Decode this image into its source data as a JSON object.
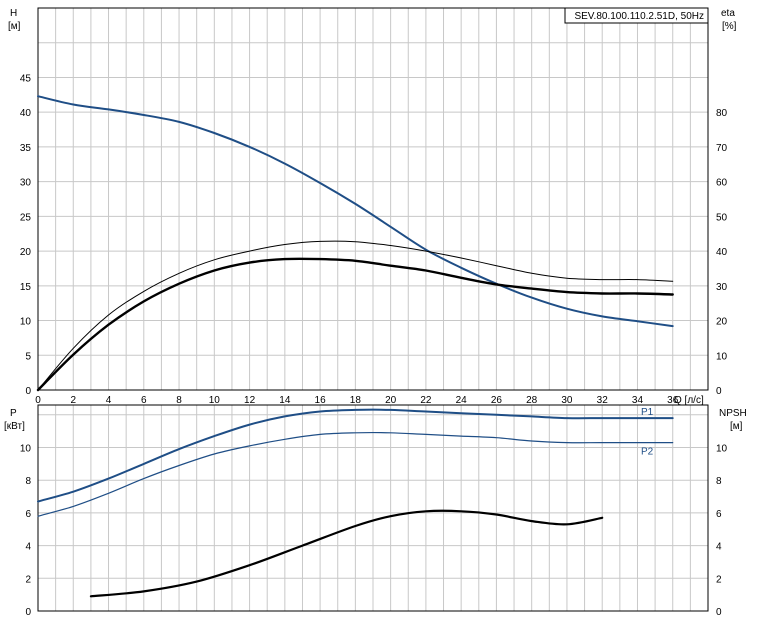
{
  "chart_data": [
    {
      "type": "line",
      "title": "SEV.80.100.110.2.51D, 50Hz",
      "x_axis": {
        "label": "Q [л/с]",
        "range": [
          0,
          38
        ],
        "ticks": [
          0,
          2,
          4,
          6,
          8,
          10,
          12,
          14,
          16,
          18,
          20,
          22,
          24,
          26,
          28,
          30,
          32,
          34,
          36
        ]
      },
      "y_axis_left": {
        "label_line1": "H",
        "label_line2": "[м]",
        "range": [
          0,
          55
        ],
        "ticks": [
          0,
          5,
          10,
          15,
          20,
          25,
          30,
          35,
          40,
          45
        ]
      },
      "y_axis_right": {
        "label_line1": "eta",
        "label_line2": "[%]",
        "range": [
          0,
          110
        ],
        "ticks": [
          0,
          10,
          20,
          30,
          40,
          50,
          60,
          70,
          80
        ]
      },
      "grid": true,
      "series": [
        {
          "name": "H",
          "axis": "left",
          "color": "#1f4e86",
          "x": [
            0,
            2,
            4,
            6,
            8,
            10,
            12,
            14,
            16,
            18,
            20,
            22,
            24,
            26,
            28,
            30,
            32,
            34,
            36
          ],
          "y": [
            42.3,
            41.1,
            40.4,
            39.6,
            38.6,
            37.0,
            35.0,
            32.6,
            29.8,
            26.8,
            23.5,
            20.2,
            17.6,
            15.3,
            13.3,
            11.7,
            10.6,
            9.9,
            9.2
          ]
        },
        {
          "name": "eta",
          "axis": "right",
          "color": "#000000",
          "x": [
            0,
            2,
            4,
            6,
            8,
            10,
            12,
            14,
            16,
            18,
            20,
            22,
            24,
            26,
            28,
            30,
            32,
            34,
            36
          ],
          "y": [
            0,
            10.2,
            18.8,
            25.5,
            30.6,
            34.4,
            36.7,
            37.7,
            37.7,
            37.2,
            35.8,
            34.4,
            32.3,
            30.4,
            29.2,
            28.2,
            27.8,
            27.8,
            27.5
          ]
        },
        {
          "name": "eta (thin)",
          "axis": "right",
          "color": "#000000",
          "x": [
            0,
            2,
            4,
            6,
            8,
            10,
            12,
            14,
            16,
            18,
            20,
            22,
            24,
            26,
            28,
            30,
            32,
            34,
            36
          ],
          "y": [
            0,
            12.0,
            21.6,
            28.4,
            33.6,
            37.5,
            40.0,
            41.9,
            42.8,
            42.7,
            41.6,
            40.0,
            38.0,
            35.8,
            33.6,
            32.2,
            31.8,
            31.8,
            31.3
          ]
        }
      ]
    },
    {
      "type": "line",
      "x_axis": {
        "range": [
          0,
          38
        ]
      },
      "y_axis_left": {
        "label_line1": "P",
        "label_line2": "[кВт]",
        "range": [
          0,
          12.6
        ],
        "ticks": [
          0,
          2,
          4,
          6,
          8,
          10
        ]
      },
      "y_axis_right": {
        "label_line1": "NPSH",
        "label_line2": "[м]",
        "range": [
          0,
          12.6
        ],
        "ticks": [
          0,
          2,
          4,
          6,
          8,
          10
        ]
      },
      "grid": true,
      "series": [
        {
          "name": "P1",
          "axis": "left",
          "color": "#1f4e86",
          "x": [
            0,
            2,
            4,
            6,
            8,
            10,
            12,
            14,
            16,
            18,
            20,
            22,
            24,
            26,
            28,
            30,
            32,
            34,
            36
          ],
          "y": [
            6.7,
            7.3,
            8.1,
            9.0,
            9.9,
            10.7,
            11.4,
            11.9,
            12.2,
            12.3,
            12.3,
            12.2,
            12.1,
            12.0,
            11.9,
            11.8,
            11.8,
            11.8,
            11.8
          ]
        },
        {
          "name": "P2",
          "axis": "left",
          "color": "#1f4e86",
          "x": [
            0,
            2,
            4,
            6,
            8,
            10,
            12,
            14,
            16,
            18,
            20,
            22,
            24,
            26,
            28,
            30,
            32,
            34,
            36
          ],
          "y": [
            5.8,
            6.4,
            7.2,
            8.1,
            8.9,
            9.6,
            10.1,
            10.5,
            10.8,
            10.9,
            10.9,
            10.8,
            10.7,
            10.6,
            10.4,
            10.3,
            10.3,
            10.3,
            10.3
          ]
        },
        {
          "name": "NPSH",
          "axis": "right",
          "color": "#000000",
          "x": [
            3,
            6,
            9,
            12,
            15,
            18,
            20,
            22,
            24,
            26,
            28,
            30,
            32
          ],
          "y": [
            0.9,
            1.2,
            1.8,
            2.8,
            4.0,
            5.2,
            5.8,
            6.1,
            6.1,
            5.9,
            5.5,
            5.3,
            5.7
          ]
        }
      ]
    }
  ]
}
